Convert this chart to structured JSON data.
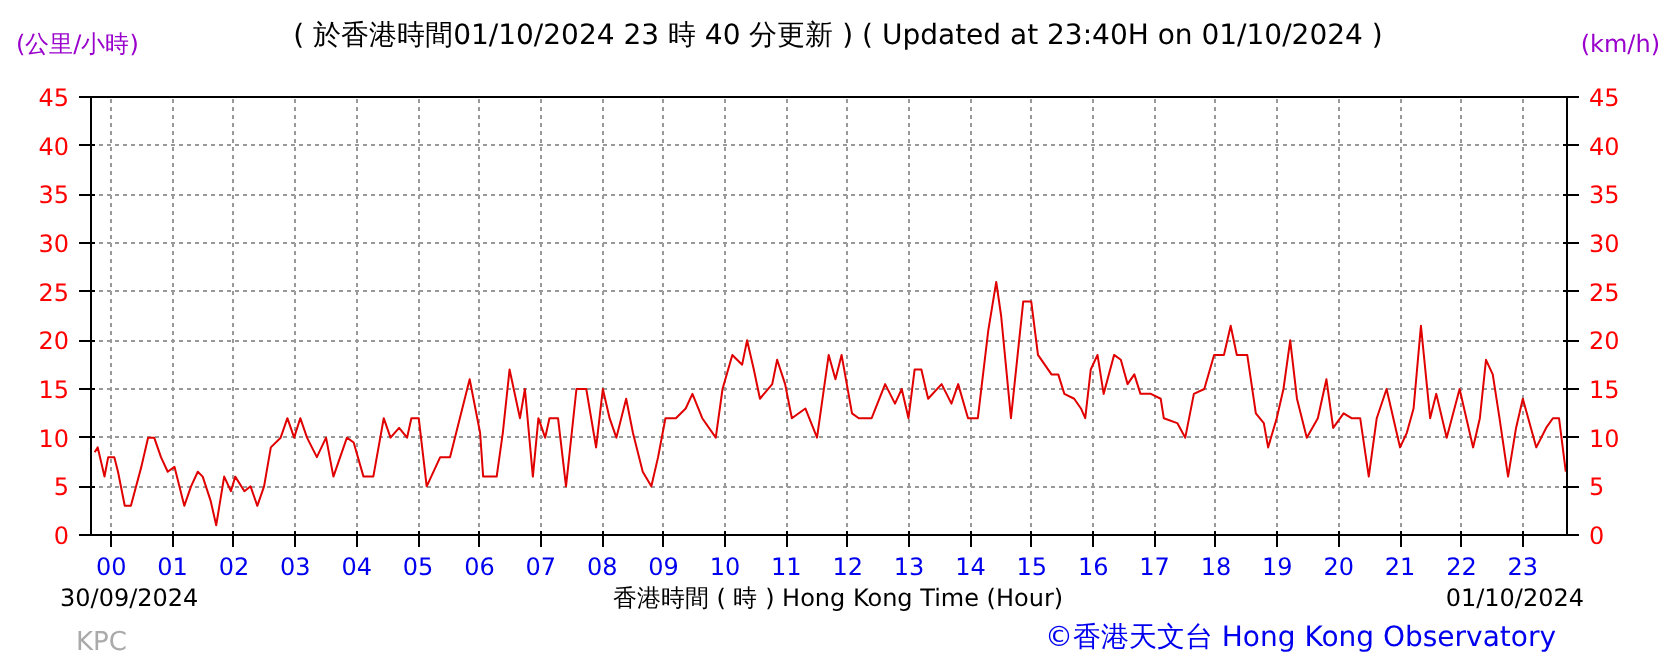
{
  "chart_data": {
    "type": "line",
    "title": "( 於香港時間01/10/2024 23 時 40 分更新 ) ( Updated at 23:40H on 01/10/2024 )",
    "xlabel": "香港時間 ( 時 ) Hong Kong Time (Hour)",
    "ylabel": "(公里/小時)",
    "y2label": "(km/h)",
    "annotations": [
      "30/09/2024",
      "01/10/2024",
      "KPC",
      "©香港天文台 Hong Kong Observatory"
    ],
    "xlim": [
      -0.33,
      23.72
    ],
    "xticks": [
      {
        "value": 0,
        "label": "00"
      },
      {
        "value": 1,
        "label": "01"
      },
      {
        "value": 2,
        "label": "02"
      },
      {
        "value": 3,
        "label": "03"
      },
      {
        "value": 4,
        "label": "04"
      },
      {
        "value": 5,
        "label": "05"
      },
      {
        "value": 6,
        "label": "06"
      },
      {
        "value": 7,
        "label": "07"
      },
      {
        "value": 8,
        "label": "08"
      },
      {
        "value": 9,
        "label": "09"
      },
      {
        "value": 10,
        "label": "10"
      },
      {
        "value": 11,
        "label": "11"
      },
      {
        "value": 12,
        "label": "12"
      },
      {
        "value": 13,
        "label": "13"
      },
      {
        "value": 14,
        "label": "14"
      },
      {
        "value": 15,
        "label": "15"
      },
      {
        "value": 16,
        "label": "16"
      },
      {
        "value": 17,
        "label": "17"
      },
      {
        "value": 18,
        "label": "18"
      },
      {
        "value": 19,
        "label": "19"
      },
      {
        "value": 20,
        "label": "20"
      },
      {
        "value": 21,
        "label": "21"
      },
      {
        "value": 22,
        "label": "22"
      },
      {
        "value": 23,
        "label": "23"
      }
    ],
    "ylim": [
      0,
      45
    ],
    "yticks": [
      0,
      5,
      10,
      15,
      20,
      25,
      30,
      35,
      40,
      45
    ],
    "y2lim": [
      0,
      45
    ],
    "y2ticks": [
      0,
      5,
      10,
      15,
      20,
      25,
      30,
      35,
      40,
      45
    ],
    "grid": true,
    "marker": "none",
    "line_style": "solid",
    "series": [
      {
        "color": "#e00000",
        "x": [
          -0.27,
          -0.22,
          -0.11,
          -0.05,
          0.05,
          0.11,
          0.22,
          0.32,
          0.49,
          0.6,
          0.7,
          0.81,
          0.92,
          1.03,
          1.19,
          1.3,
          1.41,
          1.49,
          1.62,
          1.71,
          1.84,
          1.95,
          2.02,
          2.17,
          2.27,
          2.38,
          2.49,
          2.6,
          2.76,
          2.87,
          2.98,
          3.08,
          3.19,
          3.35,
          3.5,
          3.62,
          3.84,
          3.95,
          4.11,
          4.27,
          4.44,
          4.55,
          4.69,
          4.82,
          4.89,
          5.01,
          5.14,
          5.36,
          5.52,
          5.68,
          5.84,
          6.01,
          6.06,
          6.28,
          6.38,
          6.49,
          6.66,
          6.74,
          6.87,
          6.96,
          7.07,
          7.14,
          7.28,
          7.41,
          7.58,
          7.74,
          7.9,
          8.01,
          8.12,
          8.23,
          8.39,
          8.5,
          8.66,
          8.8,
          8.91,
          9.03,
          9.2,
          9.36,
          9.47,
          9.63,
          9.85,
          9.96,
          10.12,
          10.28,
          10.36,
          10.47,
          10.57,
          10.77,
          10.85,
          10.98,
          11.09,
          11.31,
          11.5,
          11.69,
          11.8,
          11.9,
          12.07,
          12.18,
          12.39,
          12.61,
          12.77,
          12.88,
          12.99,
          13.09,
          13.2,
          13.31,
          13.53,
          13.69,
          13.8,
          13.96,
          14.12,
          14.29,
          14.42,
          14.5,
          14.66,
          14.86,
          14.99,
          15.1,
          15.32,
          15.43,
          15.53,
          15.69,
          15.8,
          15.87,
          15.96,
          16.07,
          16.17,
          16.34,
          16.45,
          16.56,
          16.67,
          16.77,
          16.94,
          17.1,
          17.15,
          17.37,
          17.5,
          17.64,
          17.81,
          17.97,
          18.13,
          18.24,
          18.34,
          18.51,
          18.65,
          18.78,
          18.85,
          18.99,
          19.1,
          19.21,
          19.32,
          19.48,
          19.66,
          19.8,
          19.91,
          20.08,
          20.21,
          20.35,
          20.49,
          20.62,
          20.78,
          21.0,
          21.11,
          21.22,
          21.34,
          21.49,
          21.59,
          21.76,
          21.97,
          22.19,
          22.3,
          22.4,
          22.51,
          22.62,
          22.76,
          22.89,
          23.0,
          23.22,
          23.38,
          23.49,
          23.59,
          23.7
        ],
        "values": [
          8.5,
          9,
          6,
          8,
          8,
          6.5,
          3,
          3,
          7,
          10,
          10,
          8,
          6.5,
          7,
          3,
          5,
          6.5,
          6,
          3.5,
          1,
          6,
          4.5,
          6,
          4.5,
          5,
          3,
          5,
          9,
          10,
          12,
          10,
          12,
          10,
          8,
          10,
          6,
          10,
          9.5,
          6,
          6,
          12,
          10,
          11,
          10,
          12,
          12,
          5,
          8,
          8,
          12,
          16,
          10.5,
          6,
          6,
          10.5,
          17,
          12,
          15,
          6,
          12,
          10,
          12,
          12,
          5,
          15,
          15,
          9,
          15,
          12,
          10,
          14,
          10.5,
          6.5,
          5,
          8,
          12,
          12,
          13,
          14.5,
          12,
          10,
          15,
          18.5,
          17.5,
          20,
          17,
          14,
          15.5,
          18,
          15.5,
          12,
          13,
          10,
          18.5,
          16,
          18.5,
          12.5,
          12,
          12,
          15.5,
          13.5,
          15,
          12,
          17,
          17,
          14,
          15.5,
          13.5,
          15.5,
          12,
          12,
          21,
          26,
          22.5,
          12,
          24,
          24,
          18.5,
          16.5,
          16.5,
          14.5,
          14,
          13,
          12,
          17,
          18.5,
          14.5,
          18.5,
          18,
          15.5,
          16.5,
          14.5,
          14.5,
          14,
          12,
          11.5,
          10,
          14.5,
          15,
          18.5,
          18.5,
          21.5,
          18.5,
          18.5,
          12.5,
          11.5,
          9,
          12,
          15,
          20,
          14,
          10,
          12,
          16,
          11,
          12.5,
          12,
          12,
          6,
          12,
          15,
          9,
          10.5,
          13,
          21.5,
          12,
          14.5,
          10,
          15,
          9,
          12,
          18,
          16.5,
          12,
          6,
          11,
          14,
          9,
          11,
          12,
          12,
          6.5
        ]
      }
    ]
  }
}
